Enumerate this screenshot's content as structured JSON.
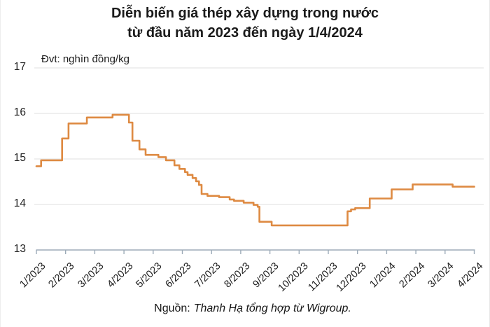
{
  "title": {
    "line1": "Diễn biến giá thép xây dựng trong nước",
    "line2": "từ đầu năm 2023 đến ngày 1/4/2024"
  },
  "unit_label": "Đvt: nghìn đồng/kg",
  "source": {
    "prefix": "Nguồn:",
    "text": "Thanh Hạ tổng hợp từ Wigroup."
  },
  "colors": {
    "line": "#DE8A42",
    "grid": "#e5e5e5",
    "axis": "#9dabb8",
    "text": "#1b1b1b"
  },
  "chart_data": {
    "type": "line",
    "title": "Diễn biến giá thép xây dựng trong nước từ đầu năm 2023 đến ngày 1/4/2024",
    "ylabel": "nghìn đồng/kg",
    "xlabel": "",
    "ylim": [
      13,
      17
    ],
    "y_ticks": [
      17,
      16,
      15,
      14,
      13
    ],
    "x_tick_labels": [
      "1/2023",
      "2/2023",
      "3/2023",
      "4/2023",
      "5/2023",
      "6/2023",
      "7/2023",
      "8/2023",
      "9/2023",
      "10/2023",
      "11/2023",
      "12/2023",
      "1/2024",
      "2/2024",
      "3/2024",
      "4/2024"
    ],
    "grid": "horizontal",
    "legend": "none",
    "x_unit": "months offset from 1/2023 (0 = 1/2023, 15 = 4/2024)",
    "series": [
      {
        "points": [
          [
            0.0,
            14.84
          ],
          [
            0.16,
            14.84
          ],
          [
            0.16,
            14.97
          ],
          [
            0.88,
            14.97
          ],
          [
            0.88,
            15.45
          ],
          [
            1.1,
            15.45
          ],
          [
            1.1,
            15.78
          ],
          [
            1.73,
            15.78
          ],
          [
            1.73,
            15.91
          ],
          [
            2.61,
            15.91
          ],
          [
            2.61,
            15.97
          ],
          [
            3.17,
            15.97
          ],
          [
            3.17,
            15.8
          ],
          [
            3.29,
            15.8
          ],
          [
            3.29,
            15.4
          ],
          [
            3.53,
            15.4
          ],
          [
            3.53,
            15.21
          ],
          [
            3.74,
            15.21
          ],
          [
            3.74,
            15.09
          ],
          [
            4.18,
            15.09
          ],
          [
            4.18,
            15.04
          ],
          [
            4.44,
            15.04
          ],
          [
            4.44,
            14.97
          ],
          [
            4.73,
            14.97
          ],
          [
            4.73,
            14.86
          ],
          [
            4.9,
            14.86
          ],
          [
            4.9,
            14.78
          ],
          [
            5.09,
            14.78
          ],
          [
            5.09,
            14.71
          ],
          [
            5.18,
            14.71
          ],
          [
            5.18,
            14.65
          ],
          [
            5.35,
            14.65
          ],
          [
            5.35,
            14.58
          ],
          [
            5.47,
            14.58
          ],
          [
            5.47,
            14.51
          ],
          [
            5.57,
            14.51
          ],
          [
            5.57,
            14.43
          ],
          [
            5.66,
            14.43
          ],
          [
            5.66,
            14.23
          ],
          [
            5.86,
            14.23
          ],
          [
            5.86,
            14.19
          ],
          [
            6.26,
            14.19
          ],
          [
            6.26,
            14.16
          ],
          [
            6.62,
            14.16
          ],
          [
            6.62,
            14.11
          ],
          [
            6.77,
            14.11
          ],
          [
            6.77,
            14.08
          ],
          [
            7.1,
            14.08
          ],
          [
            7.1,
            14.04
          ],
          [
            7.44,
            14.04
          ],
          [
            7.44,
            13.99
          ],
          [
            7.58,
            13.99
          ],
          [
            7.58,
            13.95
          ],
          [
            7.64,
            13.95
          ],
          [
            7.64,
            13.62
          ],
          [
            8.06,
            13.62
          ],
          [
            8.06,
            13.54
          ],
          [
            10.66,
            13.54
          ],
          [
            10.66,
            13.85
          ],
          [
            10.78,
            13.85
          ],
          [
            10.78,
            13.89
          ],
          [
            10.92,
            13.89
          ],
          [
            10.92,
            13.92
          ],
          [
            11.42,
            13.92
          ],
          [
            11.42,
            14.13
          ],
          [
            12.17,
            14.13
          ],
          [
            12.17,
            14.33
          ],
          [
            12.89,
            14.33
          ],
          [
            12.89,
            14.44
          ],
          [
            14.26,
            14.44
          ],
          [
            14.26,
            14.39
          ],
          [
            15.0,
            14.39
          ]
        ]
      }
    ]
  }
}
